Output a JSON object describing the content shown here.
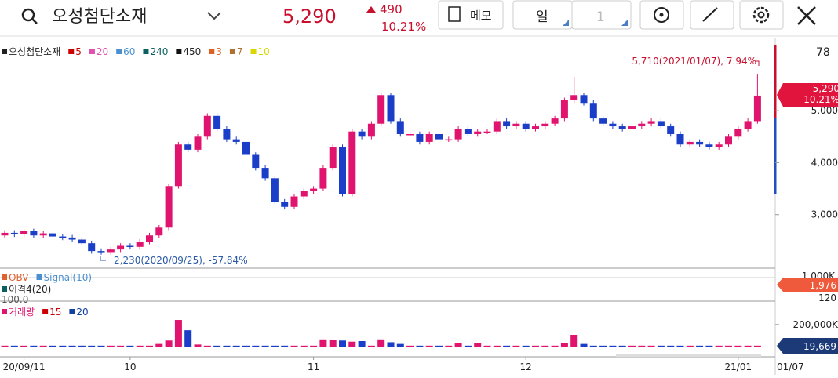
{
  "header": {
    "stock_name": "오성첨단소재",
    "price": "5,290",
    "change": "490",
    "change_pct": "10.21%",
    "memo": "메모",
    "period": "일",
    "period_count": "1"
  },
  "chart_data": {
    "type": "candlestick",
    "legend": [
      {
        "name": "오성첨단소재",
        "color": "#222222"
      },
      {
        "name": "5",
        "color": "#cc0000"
      },
      {
        "name": "20",
        "color": "#e050b0"
      },
      {
        "name": "60",
        "color": "#4a90d0"
      },
      {
        "name": "240",
        "color": "#0a6060"
      },
      {
        "name": "450",
        "color": "#111111"
      },
      {
        "name": "3",
        "color": "#e06020"
      },
      {
        "name": "7",
        "color": "#b07030"
      },
      {
        "name": "10",
        "color": "#d8d800"
      }
    ],
    "up_color": "#e0146e",
    "down_color": "#1a3ec8",
    "categories": [
      null,
      null,
      "20/09/11",
      null,
      null,
      null,
      null,
      null,
      null,
      null,
      null,
      null,
      null,
      "10",
      null,
      null,
      null,
      null,
      null,
      null,
      null,
      null,
      null,
      null,
      null,
      null,
      null,
      null,
      null,
      null,
      null,
      null,
      "11",
      null,
      null,
      null,
      null,
      null,
      null,
      null,
      null,
      null,
      null,
      null,
      null,
      null,
      null,
      null,
      null,
      null,
      null,
      null,
      null,
      null,
      "12",
      null,
      null,
      null,
      null,
      null,
      null,
      null,
      null,
      null,
      null,
      null,
      null,
      null,
      null,
      null,
      null,
      null,
      null,
      null,
      null,
      null,
      "21/01",
      null,
      null
    ],
    "open": [
      2600,
      2650,
      2620,
      2680,
      2600,
      2640,
      2580,
      2560,
      2520,
      2450,
      2300,
      2280,
      2330,
      2400,
      2380,
      2480,
      2600,
      2750,
      3550,
      4350,
      4250,
      4500,
      4900,
      4650,
      4450,
      4400,
      4150,
      3900,
      3700,
      3250,
      3150,
      3350,
      3450,
      3500,
      3900,
      4300,
      3400,
      4600,
      4500,
      4750,
      5300,
      4800,
      4550,
      4550,
      4400,
      4550,
      4450,
      4450,
      4650,
      4550,
      4600,
      4600,
      4800,
      4700,
      4750,
      4650,
      4700,
      4750,
      4850,
      5200,
      5300,
      5150,
      4850,
      4750,
      4700,
      4650,
      4700,
      4750,
      4800,
      4700,
      4550,
      4350,
      4400,
      4350,
      4300,
      4350,
      4500,
      4650,
      4800
    ],
    "high": [
      2700,
      2700,
      2730,
      2730,
      2690,
      2690,
      2630,
      2610,
      2570,
      2500,
      2350,
      2380,
      2450,
      2450,
      2530,
      2650,
      2800,
      3600,
      4400,
      4400,
      4550,
      4950,
      4950,
      4700,
      4500,
      4450,
      4200,
      3950,
      3750,
      3300,
      3400,
      3500,
      3550,
      3950,
      4350,
      4350,
      4650,
      4650,
      4800,
      5350,
      5350,
      4850,
      4600,
      4600,
      4600,
      4600,
      4500,
      4700,
      4700,
      4650,
      4650,
      4850,
      4850,
      4800,
      4800,
      4750,
      4800,
      4900,
      5250,
      5650,
      5350,
      5200,
      4900,
      4800,
      4750,
      4750,
      4800,
      4850,
      4850,
      4750,
      4600,
      4450,
      4450,
      4400,
      4400,
      4550,
      4700,
      4850,
      5710
    ],
    "low": [
      2550,
      2570,
      2570,
      2550,
      2550,
      2530,
      2510,
      2470,
      2400,
      2250,
      2230,
      2230,
      2280,
      2330,
      2330,
      2430,
      2550,
      2700,
      3500,
      4200,
      4200,
      4450,
      4600,
      4400,
      4350,
      4100,
      3850,
      3650,
      3200,
      3100,
      3100,
      3300,
      3400,
      3450,
      3850,
      3350,
      3350,
      4450,
      4450,
      4700,
      4750,
      4500,
      4500,
      4350,
      4350,
      4400,
      4400,
      4400,
      4500,
      4500,
      4550,
      4550,
      4650,
      4650,
      4600,
      4600,
      4650,
      4700,
      4800,
      5150,
      5100,
      4800,
      4700,
      4650,
      4600,
      4600,
      4650,
      4700,
      4650,
      4500,
      4300,
      4300,
      4300,
      4250,
      4250,
      4300,
      4450,
      4600,
      4750
    ],
    "close": [
      2650,
      2620,
      2680,
      2600,
      2640,
      2580,
      2560,
      2520,
      2450,
      2300,
      2280,
      2330,
      2400,
      2380,
      2480,
      2600,
      2750,
      3550,
      4350,
      4250,
      4500,
      4900,
      4650,
      4450,
      4400,
      4150,
      3900,
      3700,
      3250,
      3150,
      3350,
      3450,
      3500,
      3900,
      4300,
      3400,
      4600,
      4500,
      4750,
      5300,
      4800,
      4550,
      4550,
      4400,
      4550,
      4450,
      4450,
      4650,
      4550,
      4600,
      4600,
      4800,
      4700,
      4750,
      4650,
      4700,
      4750,
      4850,
      5200,
      5300,
      5150,
      4850,
      4750,
      4700,
      4650,
      4700,
      4750,
      4800,
      4700,
      4550,
      4350,
      4400,
      4350,
      4300,
      4350,
      4500,
      4650,
      4800,
      5290
    ],
    "ylim": [
      2000,
      6300
    ],
    "yticks": [
      {
        "value": 3000,
        "label": "3,000"
      },
      {
        "value": 4000,
        "label": "4,000"
      },
      {
        "value": 5000,
        "label": "5,000"
      }
    ],
    "top_label": "78",
    "high_annotation": "5,710(2021/01/07), 7.94%",
    "low_annotation": "2,230(2020/09/25), -57.84%",
    "current_date": "01/07",
    "obv": {
      "legend": [
        {
          "name": "OBV",
          "color": "#e06030"
        },
        {
          "name": "Signal(10)",
          "color": "#4a90d0"
        }
      ],
      "disparity": {
        "name": "이격4(20)",
        "color": "#0a6060"
      },
      "left_label": "100.0",
      "top_label": "1,000K",
      "tag": "1,976",
      "bottom_label": "120"
    },
    "volume": {
      "legend": [
        {
          "name": "거래량",
          "color": "#e0146e"
        },
        {
          "name": "15",
          "color": "#cc0000"
        },
        {
          "name": "20",
          "color": "#1040a0"
        }
      ],
      "values": [
        15000,
        15000,
        15000,
        15000,
        15000,
        15000,
        15000,
        15000,
        15000,
        15000,
        15000,
        15000,
        15000,
        15000,
        15000,
        15000,
        30000,
        60000,
        240000,
        150000,
        25000,
        15000,
        15000,
        15000,
        15000,
        15000,
        15000,
        15000,
        15000,
        15000,
        15000,
        15000,
        15000,
        70000,
        65000,
        60000,
        50000,
        55000,
        15000,
        70000,
        45000,
        30000,
        15000,
        15000,
        15000,
        15000,
        15000,
        35000,
        15000,
        40000,
        15000,
        15000,
        15000,
        15000,
        15000,
        15000,
        15000,
        15000,
        40000,
        110000,
        30000,
        15000,
        15000,
        15000,
        15000,
        15000,
        15000,
        15000,
        15000,
        15000,
        15000,
        15000,
        15000,
        15000,
        15000,
        15000,
        15000,
        15000,
        15000
      ],
      "ylim": [
        0,
        350000
      ],
      "yticks": [
        {
          "value": 200000,
          "label": "200,000K"
        }
      ],
      "tag": "19,669"
    }
  }
}
